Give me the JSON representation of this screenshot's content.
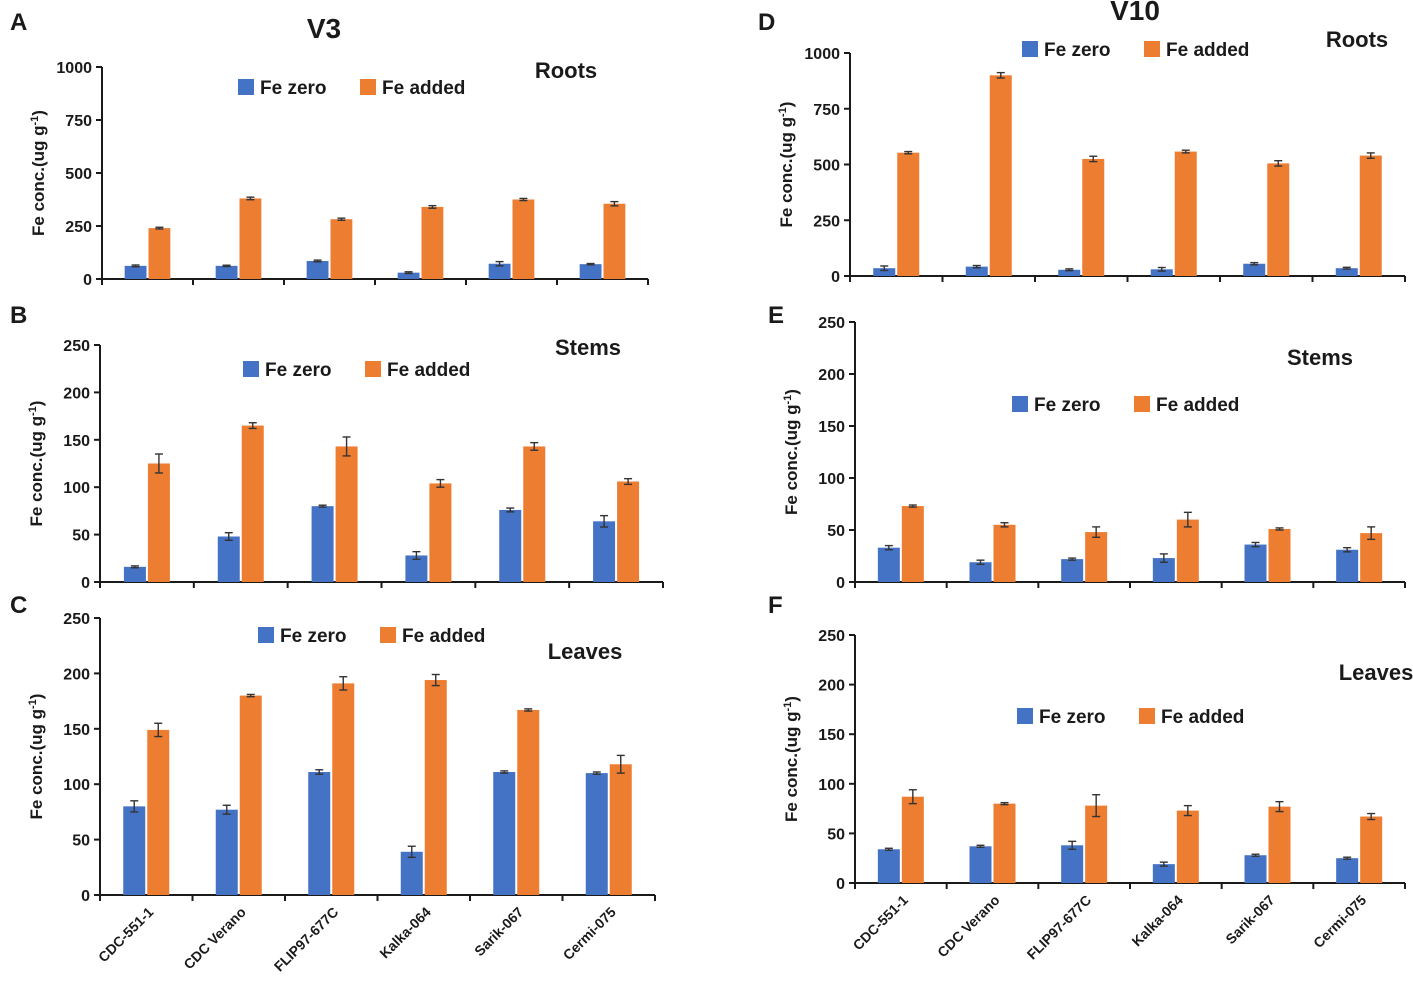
{
  "column_titles": {
    "left": "V3",
    "right": "V10"
  },
  "legend": {
    "zero": "Fe zero",
    "added": "Fe added"
  },
  "colors": {
    "zero": "#4472C4",
    "added": "#ED7D31",
    "axis": "#1a1a1a",
    "error": "#333333"
  },
  "chart_data": [
    {
      "panel": "A",
      "type": "bar",
      "title": "Roots",
      "ylabel": "Fe conc.(ug g-1)",
      "ylim": [
        0,
        1000
      ],
      "yticks": [
        0,
        250,
        500,
        750,
        1000
      ],
      "categories": [
        "CDC-551-1",
        "CDC Verano",
        "FLIP97-677C",
        "Kalka-064",
        "Sarik-067",
        "Cermi-075"
      ],
      "series": [
        {
          "name": "Fe zero",
          "values": [
            62,
            62,
            85,
            30,
            72,
            70
          ],
          "errors": [
            4,
            3,
            4,
            4,
            10,
            3
          ]
        },
        {
          "name": "Fe added",
          "values": [
            240,
            380,
            282,
            340,
            375,
            355
          ],
          "errors": [
            4,
            6,
            5,
            6,
            5,
            10
          ]
        }
      ]
    },
    {
      "panel": "B",
      "type": "bar",
      "title": "Stems",
      "ylabel": "Fe conc.(ug g-1)",
      "ylim": [
        0,
        250
      ],
      "yticks": [
        0,
        50,
        100,
        150,
        200,
        250
      ],
      "categories": [
        "CDC-551-1",
        "CDC Verano",
        "FLIP97-677C",
        "Kalka-064",
        "Sarik-067",
        "Cermi-075"
      ],
      "series": [
        {
          "name": "Fe zero",
          "values": [
            16,
            48,
            80,
            28,
            76,
            64
          ],
          "errors": [
            1,
            4,
            1,
            4,
            2,
            6
          ]
        },
        {
          "name": "Fe added",
          "values": [
            125,
            165,
            143,
            104,
            143,
            106
          ],
          "errors": [
            10,
            3,
            10,
            4,
            4,
            3
          ]
        }
      ]
    },
    {
      "panel": "C",
      "type": "bar",
      "title": "Leaves",
      "ylabel": "Fe conc.(ug g-1)",
      "ylim": [
        0,
        250
      ],
      "yticks": [
        0,
        50,
        100,
        150,
        200,
        250
      ],
      "categories": [
        "CDC-551-1",
        "CDC Verano",
        "FLIP97-677C",
        "Kalka-064",
        "Sarik-067",
        "Cermi-075"
      ],
      "series": [
        {
          "name": "Fe zero",
          "values": [
            80,
            77,
            111,
            39,
            111,
            110
          ],
          "errors": [
            5,
            4,
            2,
            5,
            1,
            1
          ]
        },
        {
          "name": "Fe added",
          "values": [
            149,
            180,
            191,
            194,
            167,
            118
          ],
          "errors": [
            6,
            1,
            6,
            5,
            1,
            8
          ]
        }
      ]
    },
    {
      "panel": "D",
      "type": "bar",
      "title": "Roots",
      "ylabel": "Fe conc.(ug g-1)",
      "ylim": [
        0,
        1000
      ],
      "yticks": [
        0,
        250,
        500,
        750,
        1000
      ],
      "categories": [
        "CDC-551-1",
        "CDC Verano",
        "FLIP97-677C",
        "Kalka-064",
        "Sarik-067",
        "Cermi-075"
      ],
      "series": [
        {
          "name": "Fe zero",
          "values": [
            35,
            42,
            28,
            30,
            55,
            35
          ],
          "errors": [
            10,
            5,
            4,
            8,
            5,
            4
          ]
        },
        {
          "name": "Fe added",
          "values": [
            553,
            900,
            525,
            558,
            505,
            540
          ],
          "errors": [
            5,
            12,
            12,
            6,
            12,
            12
          ]
        }
      ]
    },
    {
      "panel": "E",
      "type": "bar",
      "title": "Stems",
      "ylabel": "Fe conc.(ug g-1)",
      "ylim": [
        0,
        250
      ],
      "yticks": [
        0,
        50,
        100,
        150,
        200,
        250
      ],
      "categories": [
        "CDC-551-1",
        "CDC Verano",
        "FLIP97-677C",
        "Kalka-064",
        "Sarik-067",
        "Cermi-075"
      ],
      "series": [
        {
          "name": "Fe zero",
          "values": [
            33,
            19,
            22,
            23,
            36,
            31
          ],
          "errors": [
            2,
            2,
            1,
            4,
            2,
            2
          ]
        },
        {
          "name": "Fe added",
          "values": [
            73,
            55,
            48,
            60,
            51,
            47
          ],
          "errors": [
            1,
            2,
            5,
            7,
            1,
            6
          ]
        }
      ]
    },
    {
      "panel": "F",
      "type": "bar",
      "title": "Leaves",
      "ylabel": "Fe conc.(ug g-1)",
      "ylim": [
        0,
        250
      ],
      "yticks": [
        0,
        50,
        100,
        150,
        200,
        250
      ],
      "categories": [
        "CDC-551-1",
        "CDC Verano",
        "FLIP97-677C",
        "Kalka-064",
        "Sarik-067",
        "Cermi-075"
      ],
      "series": [
        {
          "name": "Fe zero",
          "values": [
            34,
            37,
            38,
            19,
            28,
            25
          ],
          "errors": [
            1,
            1,
            4,
            2,
            1,
            1
          ]
        },
        {
          "name": "Fe added",
          "values": [
            87,
            80,
            78,
            73,
            77,
            67
          ],
          "errors": [
            7,
            1,
            11,
            5,
            5,
            3
          ]
        }
      ]
    }
  ]
}
